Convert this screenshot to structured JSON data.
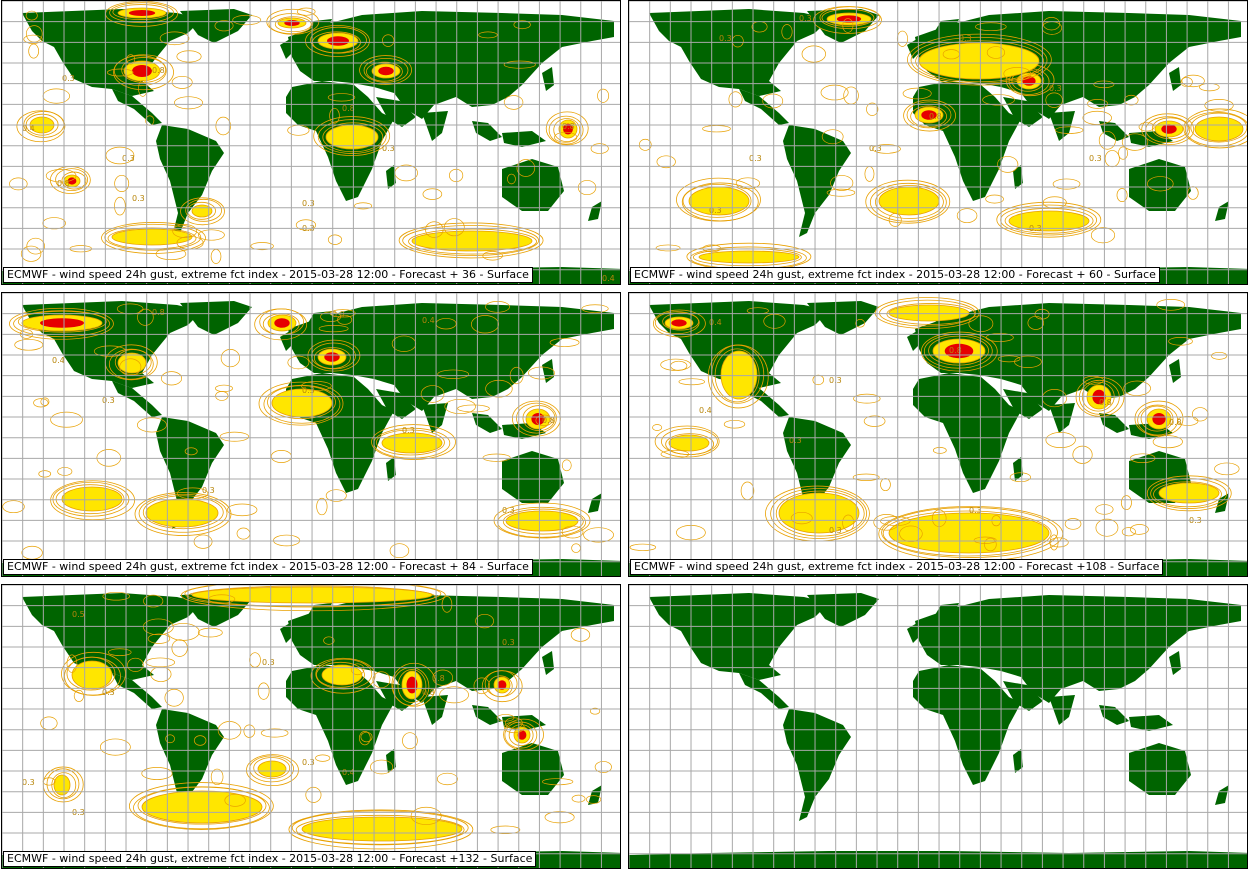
{
  "colors": {
    "land": "#006400",
    "grid": "#a8a8a8",
    "contour_orange": "#e8a000",
    "contour_yellow": "#ffe600",
    "contour_red": "#e60000",
    "label_text": "#b8860b"
  },
  "panels": [
    {
      "caption": "ECMWF - wind speed 24h gust, extreme fct index - 2015-03-28 12:00 - Forecast + 36 - Surface",
      "contour_labels": [
        "0.3",
        "0.4",
        "0.8",
        "0.3",
        "0.8",
        "0.3",
        "0.3",
        "0.8",
        "0.3",
        "0.8",
        "0.3",
        "0.4"
      ]
    },
    {
      "caption": "ECMWF - wind speed 24h gust, extreme fct index - 2015-03-28 12:00 - Forecast + 60 - Surface",
      "contour_labels": [
        "0.3",
        "0.3",
        "0.3",
        "0.3",
        "0.8",
        "0.3",
        "0.3",
        "0.3",
        "0.3",
        "0.3"
      ]
    },
    {
      "caption": "ECMWF - wind speed 24h gust, extreme fct index - 2015-03-28 12:00 - Forecast + 84 - Surface",
      "contour_labels": [
        "0.8",
        "0.8",
        "0.4",
        "0.4",
        "0.3",
        "0.3",
        "0.3",
        "0.8",
        "0.3",
        "0.3"
      ]
    },
    {
      "caption": "ECMWF - wind speed 24h gust, extreme fct index - 2015-03-28 12:00 - Forecast +108 - Surface",
      "contour_labels": [
        "0.4",
        "0.3",
        "0.4",
        "0.8",
        "0.3",
        "0.8",
        "0.3",
        "0.3",
        "0.8",
        "0.3"
      ]
    },
    {
      "caption": "ECMWF - wind speed 24h gust, extreme fct index - 2015-03-28 12:00 - Forecast +132 - Surface",
      "contour_labels": [
        "0.5",
        "0.8",
        "0.3",
        "0.3",
        "0.4",
        "0.8",
        "0.3",
        "0.3",
        "0.3",
        "0.3"
      ]
    },
    {
      "caption": "",
      "contour_labels": []
    }
  ]
}
